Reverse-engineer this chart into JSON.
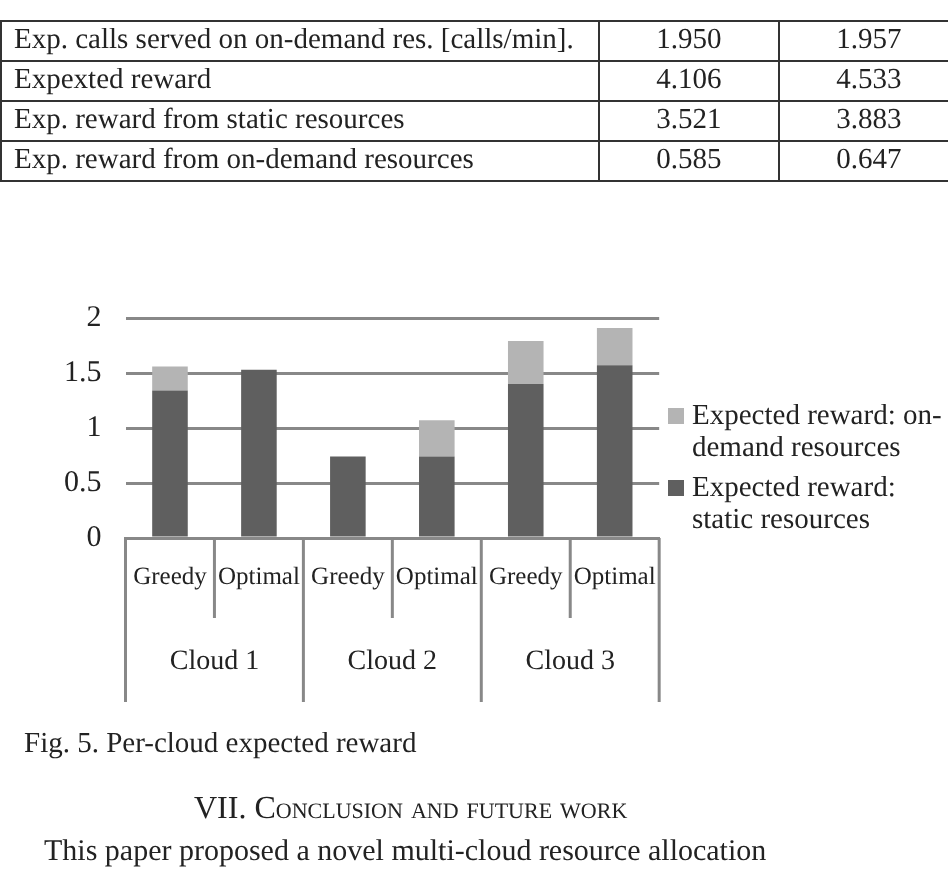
{
  "chart_data": [
    {
      "type": "other",
      "categories": [
        "Exp. calls served on on-demand res. [calls/min].",
        "Expexted reward",
        "Exp. reward from static resources",
        "Exp. reward from on-demand resources"
      ],
      "series": [
        {
          "values": [
            1.95,
            4.106,
            3.521,
            0.585
          ],
          "value_labels": [
            "1.950",
            "4.106",
            "3.521",
            "0.585"
          ]
        },
        {
          "values": [
            1.957,
            4.533,
            3.883,
            0.647
          ],
          "value_labels": [
            "1.957",
            "4.533",
            "3.883",
            "0.647"
          ]
        }
      ]
    },
    {
      "type": "bar",
      "stacked": true,
      "categories": [
        "Greedy",
        "Optimal",
        "Greedy",
        "Optimal",
        "Greedy",
        "Optimal"
      ],
      "series": [
        {
          "name": "Expected reward: static resources",
          "color": "#5f5f5f",
          "values": [
            1.34,
            1.53,
            0.74,
            0.74,
            1.4,
            1.57
          ]
        },
        {
          "name": "Expected reward: on-demand resources",
          "color": "#b4b4b4",
          "values": [
            0.22,
            0,
            0,
            0.33,
            0.39,
            0.34
          ]
        }
      ],
      "ylim": [
        0,
        2
      ],
      "yticks": [
        0,
        0.5,
        1,
        1.5,
        2
      ],
      "grid": "y",
      "legend": "right",
      "annotations": [
        "Cloud 1",
        "Cloud 2",
        "Cloud 3",
        "Fig. 5.     Per-cloud expected  reward",
        "VII.    Conclusion and future work",
        "This paper proposed a novel multi-cloud resource allocation"
      ]
    }
  ]
}
